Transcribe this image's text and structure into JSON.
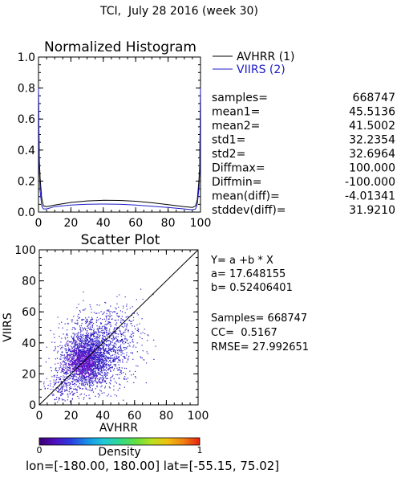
{
  "header": {
    "title": "TCI,  July 28 2016 (week 30)"
  },
  "histogram": {
    "title": "Normalized Histogram",
    "legend": [
      {
        "label": "AVHRR (1)",
        "color": "#000000"
      },
      {
        "label": "VIIRS (2)",
        "color": "#1c1cc8"
      }
    ]
  },
  "stats": [
    {
      "label": "samples=",
      "value": "668747"
    },
    {
      "label": "mean1=",
      "value": "45.5136"
    },
    {
      "label": "mean2=",
      "value": "41.5002"
    },
    {
      "label": "std1=",
      "value": "32.2354"
    },
    {
      "label": "std2=",
      "value": "32.6964"
    },
    {
      "label": "Diffmax=",
      "value": "100.000"
    },
    {
      "label": "Diffmin=",
      "value": "-100.000"
    },
    {
      "label": "mean(diff)=",
      "value": "-4.01341"
    },
    {
      "label": "stddev(diff)=",
      "value": "31.9210"
    }
  ],
  "scatter": {
    "title": "Scatter Plot",
    "equation": "Y= a +b * X",
    "a_label": "a= 17.648155",
    "b_label": "b= 0.52406401",
    "samples_label": "Samples= 668747",
    "cc_label": "CC=  0.5167",
    "rmse_label": "RMSE= 27.992651"
  },
  "colorbar": {
    "label": "Density",
    "min_label": "0",
    "max_label": "1"
  },
  "footer": {
    "lonlat": "lon=[-180.00, 180.00] lat=[-55.15, 75.02]"
  },
  "chart_data": [
    {
      "type": "line",
      "title": "Normalized Histogram",
      "xlabel": "",
      "ylabel": "",
      "xlim": [
        0,
        100
      ],
      "ylim": [
        0,
        1.0
      ],
      "xticks": [
        0,
        20,
        40,
        60,
        80,
        100
      ],
      "yticks": [
        0.0,
        0.2,
        0.4,
        0.6,
        0.8,
        1.0
      ],
      "legend_position": "top-right",
      "series": [
        {
          "name": "AVHRR (1)",
          "color": "#000000",
          "x": [
            0,
            0.5,
            1,
            2,
            3,
            5,
            10,
            20,
            30,
            40,
            50,
            60,
            70,
            80,
            90,
            95,
            97,
            98,
            99,
            99.5,
            100
          ],
          "y": [
            0.78,
            0.35,
            0.22,
            0.09,
            0.04,
            0.035,
            0.045,
            0.062,
            0.072,
            0.076,
            0.075,
            0.07,
            0.06,
            0.048,
            0.035,
            0.03,
            0.04,
            0.08,
            0.2,
            0.3,
            0.78
          ]
        },
        {
          "name": "VIIRS (2)",
          "color": "#1c1cc8",
          "x": [
            0,
            0.5,
            1,
            2,
            3,
            5,
            10,
            20,
            30,
            40,
            50,
            60,
            70,
            80,
            90,
            95,
            97,
            98,
            99,
            99.5,
            100
          ],
          "y": [
            0.8,
            0.28,
            0.14,
            0.04,
            0.02,
            0.02,
            0.035,
            0.045,
            0.05,
            0.052,
            0.05,
            0.045,
            0.038,
            0.03,
            0.02,
            0.015,
            0.02,
            0.05,
            0.15,
            0.25,
            0.8
          ]
        }
      ]
    },
    {
      "type": "scatter",
      "title": "Scatter Plot",
      "xlabel": "AVHRR",
      "ylabel": "VIIRS",
      "xlim": [
        0,
        100
      ],
      "ylim": [
        0,
        100
      ],
      "xticks": [
        0,
        20,
        40,
        60,
        80,
        100
      ],
      "yticks": [
        0,
        20,
        40,
        60,
        80,
        100
      ],
      "fit_line": {
        "a": 17.648155,
        "b": 0.52406401,
        "x_range": [
          0,
          100
        ]
      },
      "reference_line": {
        "x": [
          0,
          100
        ],
        "y": [
          0,
          100
        ]
      },
      "clusters": [
        {
          "cx": 30,
          "cy": 30,
          "sx": 9,
          "sy": 10,
          "n": 1700,
          "color": "#2a1ac4"
        },
        {
          "cx": 28,
          "cy": 28,
          "sx": 5,
          "sy": 6,
          "n": 500,
          "color": "#7a10c8"
        },
        {
          "cx": 40,
          "cy": 38,
          "sx": 11,
          "sy": 12,
          "n": 700,
          "color": "#2a1ac4"
        },
        {
          "cx": 52,
          "cy": 48,
          "sx": 8,
          "sy": 10,
          "n": 120,
          "color": "#3030d0"
        },
        {
          "cx": 15,
          "cy": 12,
          "sx": 5,
          "sy": 6,
          "n": 180,
          "color": "#3a20c8"
        }
      ]
    },
    {
      "type": "heatmap",
      "title": "Density",
      "range": [
        0,
        1
      ],
      "colors": [
        "#3a0070",
        "#5010c0",
        "#2a40e0",
        "#1890e8",
        "#20c8d8",
        "#30d890",
        "#60e040",
        "#b8e020",
        "#f0c010",
        "#f08010",
        "#e82010"
      ]
    }
  ]
}
